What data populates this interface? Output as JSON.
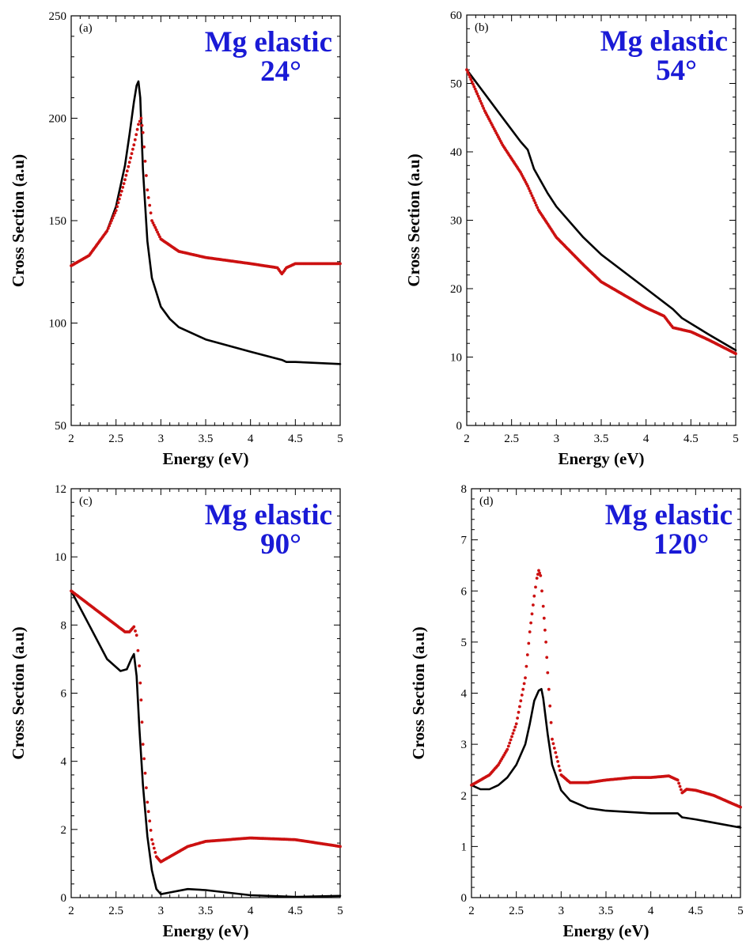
{
  "chart_data": [
    {
      "type": "scatter",
      "panel_label": "(a)",
      "annotation": [
        "Mg elastic",
        "24°"
      ],
      "xlabel": "Energy (eV)",
      "ylabel": "Cross Section (a.u)",
      "xlim": [
        2,
        5
      ],
      "ylim": [
        50,
        250
      ],
      "xticks": [
        "2",
        "2.5",
        "3",
        "3.5",
        "4",
        "4.5",
        "5"
      ],
      "yticks": [
        "50",
        "100",
        "150",
        "200",
        "250"
      ],
      "grid": false,
      "series": [
        {
          "style": "line",
          "color": "#000000",
          "x": [
            2.0,
            2.2,
            2.4,
            2.5,
            2.6,
            2.65,
            2.7,
            2.73,
            2.75,
            2.77,
            2.8,
            2.85,
            2.9,
            3.0,
            3.1,
            3.2,
            3.5,
            4.0,
            4.35,
            4.4,
            4.5,
            5.0
          ],
          "y": [
            128,
            133,
            145,
            157,
            177,
            192,
            208,
            216,
            218,
            210,
            175,
            140,
            122,
            108,
            102,
            98,
            92,
            86,
            82,
            81,
            81,
            80
          ]
        },
        {
          "style": "points",
          "color": "#cc1111",
          "x": [
            2.0,
            2.2,
            2.4,
            2.5,
            2.6,
            2.7,
            2.75,
            2.78,
            2.8,
            2.85,
            2.9,
            3.0,
            3.2,
            3.5,
            4.0,
            4.3,
            4.35,
            4.4,
            4.5,
            5.0
          ],
          "y": [
            128,
            133,
            145,
            155,
            170,
            187,
            197,
            200,
            193,
            165,
            150,
            141,
            135,
            132,
            129,
            127,
            124,
            127,
            129,
            129
          ]
        }
      ]
    },
    {
      "type": "scatter",
      "panel_label": "(b)",
      "annotation": [
        "Mg elastic",
        "54°"
      ],
      "xlabel": "Energy (eV)",
      "ylabel": "Cross Section (a.u)",
      "xlim": [
        2,
        5
      ],
      "ylim": [
        0,
        60
      ],
      "xticks": [
        "2",
        "2.5",
        "3",
        "3.5",
        "4",
        "4.5",
        "5"
      ],
      "yticks": [
        "0",
        "10",
        "20",
        "30",
        "40",
        "50",
        "60"
      ],
      "grid": false,
      "series": [
        {
          "style": "line",
          "color": "#000000",
          "x": [
            2.0,
            2.2,
            2.4,
            2.6,
            2.68,
            2.75,
            2.9,
            3.0,
            3.3,
            3.5,
            4.0,
            4.3,
            4.4,
            4.7,
            5.0
          ],
          "y": [
            52,
            48.5,
            45,
            41.5,
            40.3,
            37.5,
            34,
            32,
            27.5,
            25,
            20,
            17,
            15.7,
            13.3,
            11
          ]
        },
        {
          "style": "points",
          "color": "#cc1111",
          "x": [
            2.0,
            2.2,
            2.4,
            2.6,
            2.68,
            2.8,
            3.0,
            3.3,
            3.5,
            4.0,
            4.2,
            4.3,
            4.5,
            4.7,
            5.0
          ],
          "y": [
            52,
            46,
            41,
            37,
            35,
            31.5,
            27.5,
            23.5,
            21,
            17.2,
            16,
            14.3,
            13.7,
            12.5,
            10.5
          ]
        }
      ]
    },
    {
      "type": "scatter",
      "panel_label": "(c)",
      "annotation": [
        "Mg elastic",
        "90°"
      ],
      "xlabel": "Energy (eV)",
      "ylabel": "Cross Section (a.u)",
      "xlim": [
        2,
        5
      ],
      "ylim": [
        0,
        12
      ],
      "xticks": [
        "2",
        "2.5",
        "3",
        "3.5",
        "4",
        "4.5",
        "5"
      ],
      "yticks": [
        "0",
        "2",
        "4",
        "6",
        "8",
        "10",
        "12"
      ],
      "grid": false,
      "series": [
        {
          "style": "line",
          "color": "#000000",
          "x": [
            2.0,
            2.2,
            2.4,
            2.55,
            2.62,
            2.67,
            2.7,
            2.73,
            2.76,
            2.8,
            2.85,
            2.9,
            2.95,
            3.0,
            3.1,
            3.3,
            3.5,
            4.0,
            4.5,
            5.0
          ],
          "y": [
            9.0,
            8.0,
            7.0,
            6.65,
            6.7,
            7.0,
            7.15,
            6.5,
            5.0,
            3.3,
            1.8,
            0.8,
            0.25,
            0.1,
            0.15,
            0.25,
            0.22,
            0.07,
            0.02,
            0.05
          ]
        },
        {
          "style": "points",
          "color": "#cc1111",
          "x": [
            2.0,
            2.1,
            2.3,
            2.5,
            2.6,
            2.65,
            2.7,
            2.73,
            2.76,
            2.78,
            2.8,
            2.85,
            2.9,
            2.95,
            3.0,
            3.1,
            3.3,
            3.5,
            4.0,
            4.5,
            5.0
          ],
          "y": [
            9.0,
            8.8,
            8.4,
            8.0,
            7.8,
            7.8,
            7.95,
            7.7,
            6.8,
            5.8,
            4.5,
            2.8,
            1.7,
            1.2,
            1.05,
            1.2,
            1.5,
            1.65,
            1.75,
            1.7,
            1.5
          ]
        }
      ]
    },
    {
      "type": "scatter",
      "panel_label": "(d)",
      "annotation": [
        "Mg elastic",
        "120°"
      ],
      "xlabel": "Energy (eV)",
      "ylabel": "Cross Section (a.u)",
      "xlim": [
        2,
        5
      ],
      "ylim": [
        0,
        8
      ],
      "xticks": [
        "2",
        "2.5",
        "3",
        "3.5",
        "4",
        "4.5",
        "5"
      ],
      "yticks": [
        "0",
        "1",
        "2",
        "3",
        "4",
        "5",
        "6",
        "7",
        "8"
      ],
      "grid": false,
      "series": [
        {
          "style": "line",
          "color": "#000000",
          "x": [
            2.0,
            2.1,
            2.2,
            2.3,
            2.4,
            2.5,
            2.6,
            2.65,
            2.7,
            2.75,
            2.78,
            2.8,
            2.85,
            2.9,
            3.0,
            3.1,
            3.3,
            3.5,
            4.0,
            4.3,
            4.35,
            4.5,
            5.0
          ],
          "y": [
            2.2,
            2.12,
            2.12,
            2.2,
            2.35,
            2.6,
            3.0,
            3.4,
            3.85,
            4.05,
            4.08,
            3.9,
            3.2,
            2.6,
            2.1,
            1.9,
            1.75,
            1.7,
            1.65,
            1.65,
            1.57,
            1.53,
            1.37
          ]
        },
        {
          "style": "points",
          "color": "#cc1111",
          "x": [
            2.0,
            2.1,
            2.2,
            2.3,
            2.4,
            2.5,
            2.6,
            2.65,
            2.7,
            2.73,
            2.75,
            2.77,
            2.8,
            2.83,
            2.85,
            2.9,
            3.0,
            3.1,
            3.3,
            3.5,
            3.8,
            4.0,
            4.2,
            4.3,
            4.35,
            4.4,
            4.5,
            4.7,
            5.0
          ],
          "y": [
            2.2,
            2.3,
            2.4,
            2.6,
            2.9,
            3.4,
            4.3,
            5.2,
            5.9,
            6.25,
            6.4,
            6.3,
            5.7,
            5.0,
            4.4,
            3.1,
            2.4,
            2.25,
            2.25,
            2.3,
            2.35,
            2.35,
            2.38,
            2.3,
            2.05,
            2.12,
            2.1,
            2.0,
            1.77
          ]
        }
      ]
    }
  ]
}
